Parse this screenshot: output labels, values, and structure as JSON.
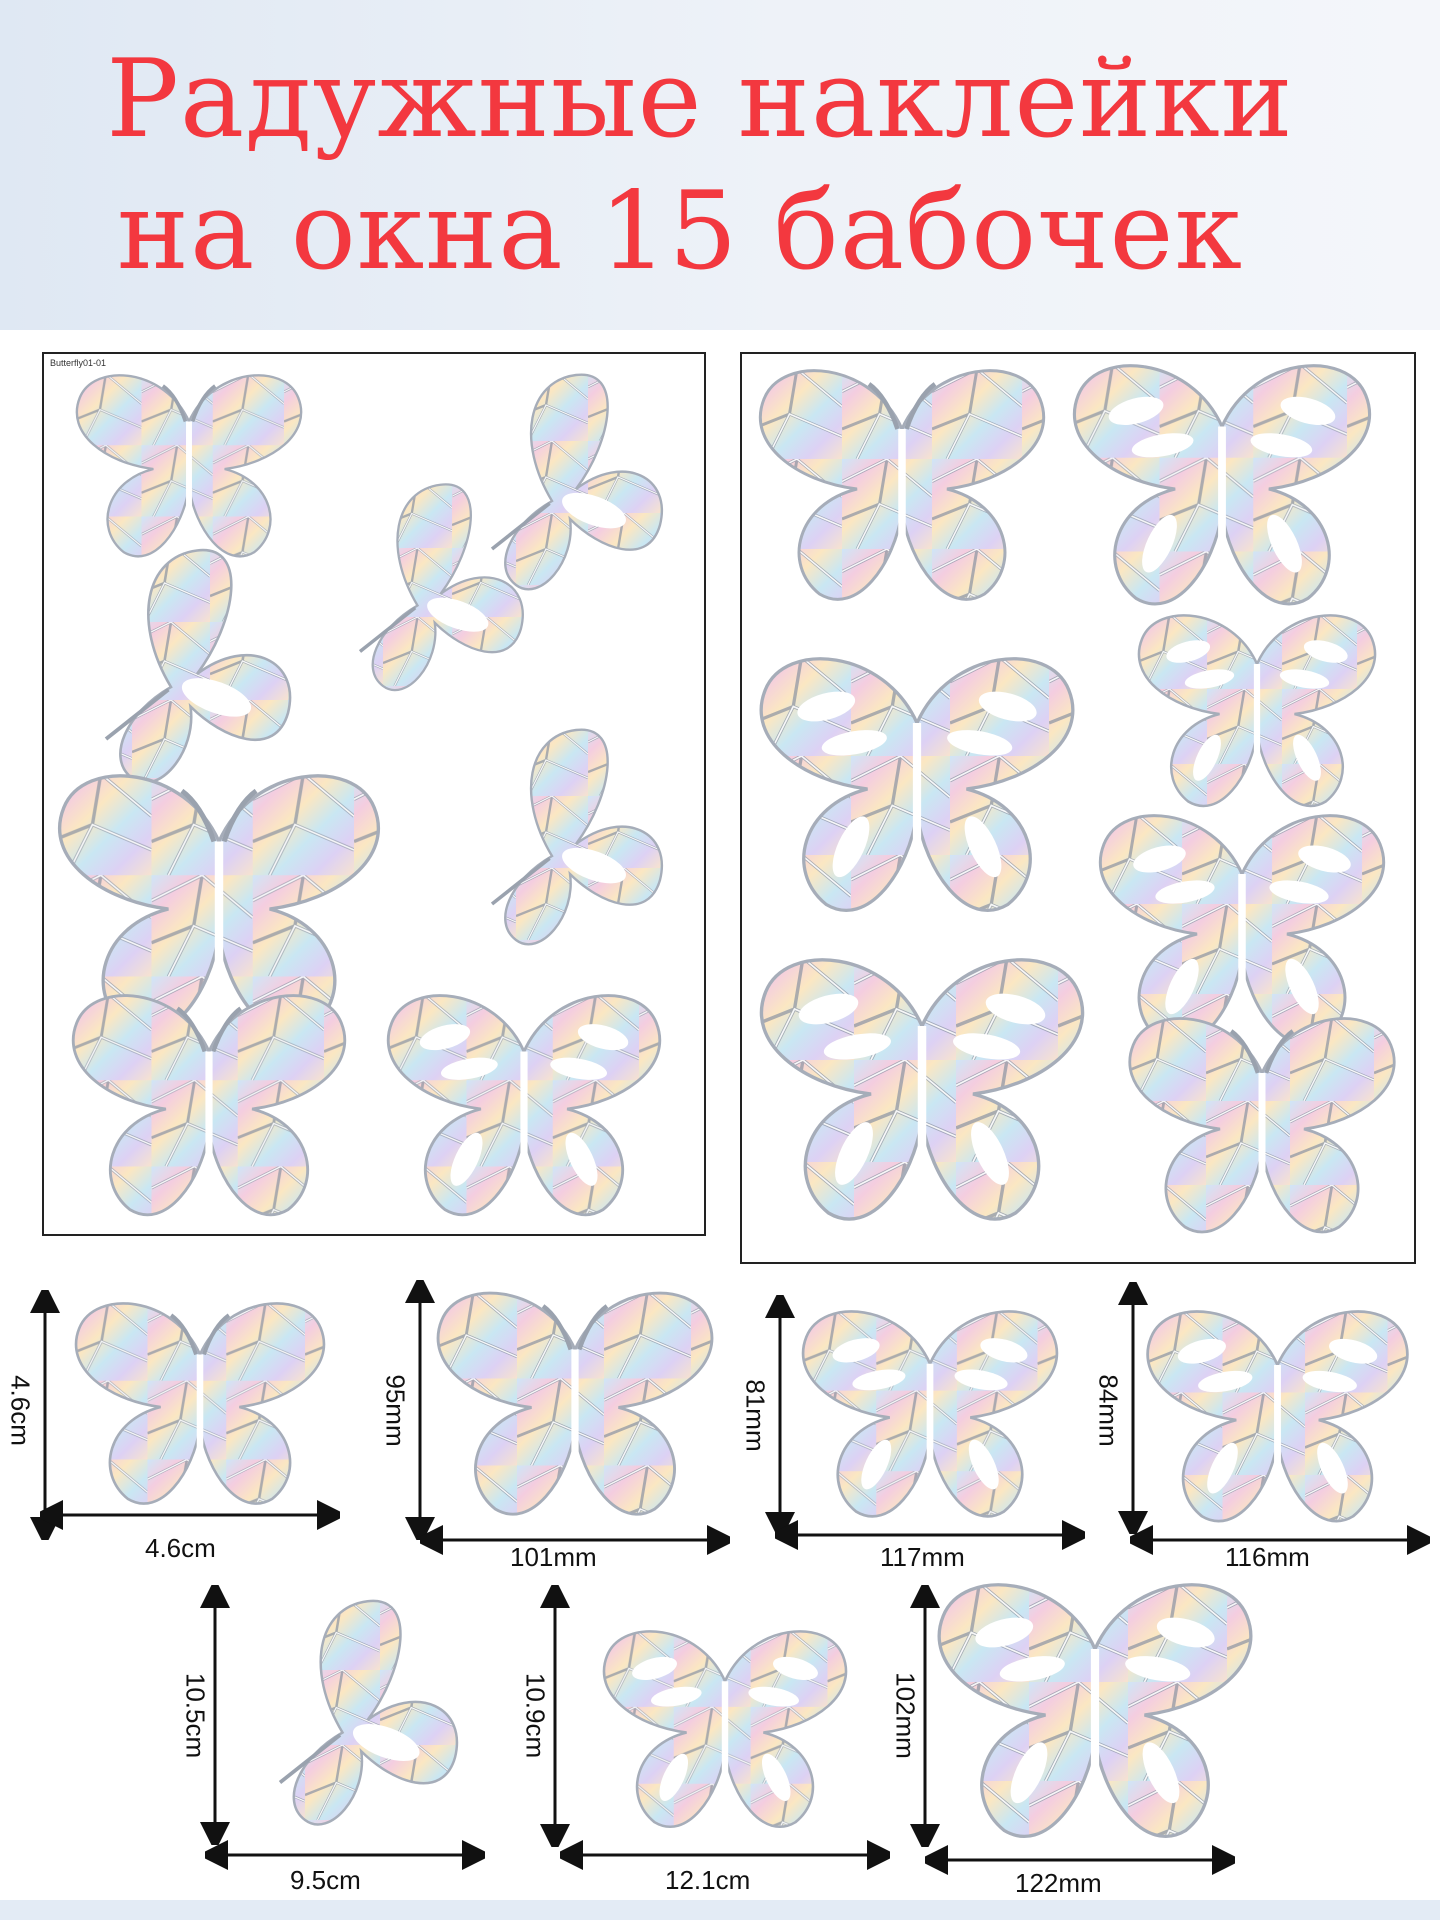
{
  "title": {
    "line1": "Радужные наклейки",
    "line2": "на окна 15 бабочек"
  },
  "sheet_left": {
    "code": "Butterfly01-01"
  },
  "colors": {
    "title": "#f3383f",
    "banner": "#e6edf6",
    "holo_a": "#b7d8f0",
    "holo_b": "#f3c6dc",
    "holo_c": "#fbe5b8",
    "holo_d": "#d3c9f2",
    "outline": "#7a8290"
  },
  "dimensions": [
    {
      "height": "4.6cm",
      "width": "4.6cm"
    },
    {
      "height": "95mm",
      "width": "101mm"
    },
    {
      "height": "81mm",
      "width": "117mm"
    },
    {
      "height": "84mm",
      "width": "116mm"
    },
    {
      "height": "10.5cm",
      "width": "9.5cm"
    },
    {
      "height": "10.9cm",
      "width": "12.1cm"
    },
    {
      "height": "102mm",
      "width": "122mm"
    }
  ]
}
